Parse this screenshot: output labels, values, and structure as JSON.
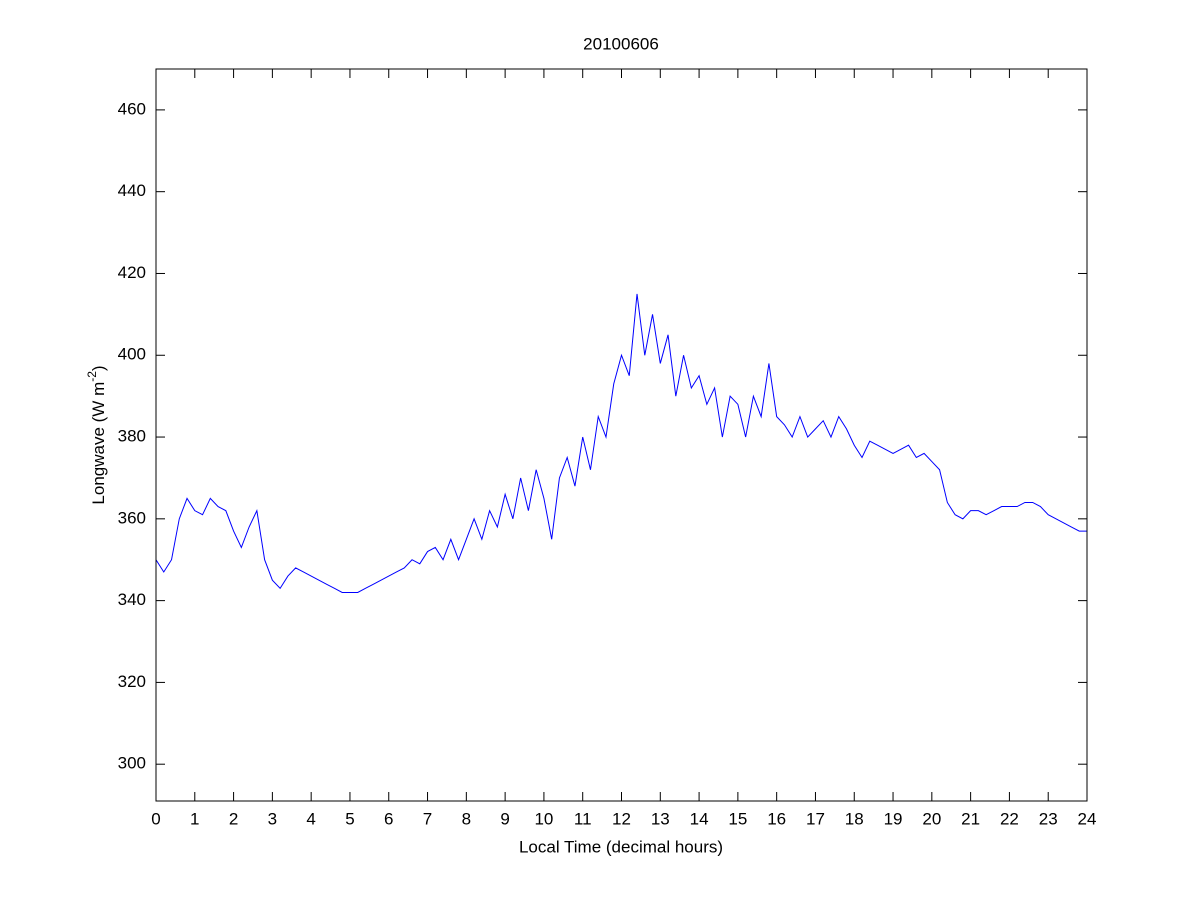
{
  "chart_data": {
    "type": "line",
    "title": "20100606",
    "x_label": "Local Time (decimal hours)",
    "y_label": "Longwave (W m",
    "y_label_superscript": "-2",
    "y_label_end": ")",
    "x": [
      0,
      0.2,
      0.4,
      0.6,
      0.8,
      1,
      1.2,
      1.4,
      1.6,
      1.8,
      2,
      2.2,
      2.4,
      2.6,
      2.8,
      3,
      3.2,
      3.4,
      3.6,
      3.8,
      4,
      4.2,
      4.4,
      4.6,
      4.8,
      5,
      5.2,
      5.4,
      5.6,
      5.8,
      6,
      6.2,
      6.4,
      6.6,
      6.8,
      7,
      7.2,
      7.4,
      7.6,
      7.8,
      8,
      8.2,
      8.4,
      8.6,
      8.8,
      9,
      9.2,
      9.4,
      9.6,
      9.8,
      10,
      10.2,
      10.4,
      10.6,
      10.8,
      11,
      11.2,
      11.4,
      11.6,
      11.8,
      12,
      12.2,
      12.4,
      12.6,
      12.8,
      13,
      13.2,
      13.4,
      13.6,
      13.8,
      14,
      14.2,
      14.4,
      14.6,
      14.8,
      15,
      15.2,
      15.4,
      15.6,
      15.8,
      16,
      16.2,
      16.4,
      16.6,
      16.8,
      17,
      17.2,
      17.4,
      17.6,
      17.8,
      18,
      18.2,
      18.4,
      18.6,
      18.8,
      19,
      19.2,
      19.4,
      19.6,
      19.8,
      20,
      20.2,
      20.4,
      20.6,
      20.8,
      21,
      21.2,
      21.4,
      21.6,
      21.8,
      22,
      22.2,
      22.4,
      22.6,
      22.8,
      23,
      23.2,
      23.4,
      23.6,
      23.8,
      24
    ],
    "series": [
      {
        "color": "#0000ff",
        "values": [
          350,
          347,
          350,
          360,
          365,
          362,
          361,
          365,
          363,
          362,
          357,
          353,
          358,
          362,
          350,
          345,
          343,
          346,
          348,
          347,
          346,
          345,
          344,
          343,
          342,
          342,
          342,
          343,
          344,
          345,
          346,
          347,
          348,
          350,
          349,
          352,
          353,
          350,
          355,
          350,
          355,
          360,
          355,
          362,
          358,
          366,
          360,
          370,
          362,
          372,
          365,
          355,
          370,
          375,
          368,
          380,
          372,
          385,
          380,
          393,
          400,
          395,
          415,
          400,
          410,
          398,
          405,
          390,
          400,
          392,
          395,
          388,
          392,
          380,
          390,
          388,
          380,
          390,
          385,
          398,
          385,
          383,
          380,
          385,
          380,
          382,
          384,
          380,
          385,
          382,
          378,
          375,
          379,
          378,
          377,
          376,
          377,
          378,
          375,
          376,
          374,
          372,
          364,
          361,
          360,
          362,
          362,
          361,
          362,
          363,
          363,
          363,
          364,
          364,
          363,
          361,
          360,
          359,
          358,
          357,
          357
        ]
      }
    ],
    "xlim": [
      0,
      24
    ],
    "xticks": [
      0,
      1,
      2,
      3,
      4,
      5,
      6,
      7,
      8,
      9,
      10,
      11,
      12,
      13,
      14,
      15,
      16,
      17,
      18,
      19,
      20,
      21,
      22,
      23,
      24
    ],
    "ylim": [
      291,
      470
    ],
    "yticks": [
      300,
      320,
      340,
      360,
      380,
      400,
      420,
      440,
      460
    ]
  }
}
